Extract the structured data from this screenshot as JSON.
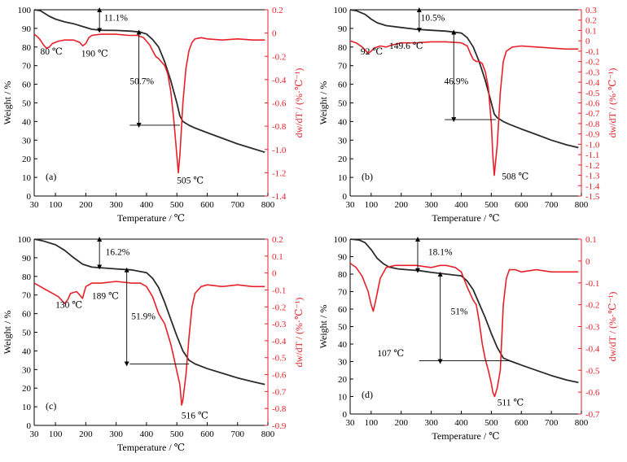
{
  "colors": {
    "weight": "#2b2b2b",
    "deriv": "#e8202a",
    "axis": "#000000",
    "annotation": "#000000"
  },
  "chart_data": [
    {
      "type": "line",
      "panel_label": "(a)",
      "xlabel": "Temperature / ℃",
      "ylabel_left": "Weight / %",
      "ylabel_right": "dw/dT / (%·℃⁻¹)",
      "xlim": [
        30,
        800
      ],
      "xticks": [
        "30",
        "100",
        "200",
        "300",
        "400",
        "500",
        "600",
        "700",
        "800"
      ],
      "ylim_left": [
        0,
        100
      ],
      "yticks_left": [
        "0",
        "10",
        "20",
        "30",
        "40",
        "50",
        "60",
        "70",
        "80",
        "90",
        "100"
      ],
      "ylim_right": [
        -1.4,
        0.2
      ],
      "yticks_right": [
        "0.2",
        "0",
        "-0.2",
        "-0.4",
        "-0.6",
        "-0.8",
        "-1.0",
        "-1.2",
        "-1.4"
      ],
      "grid": false,
      "series": [
        {
          "axis": "left",
          "x": [
            30,
            50,
            80,
            100,
            130,
            160,
            190,
            220,
            250,
            300,
            350,
            380,
            400,
            420,
            440,
            460,
            480,
            500,
            510,
            520,
            540,
            560,
            600,
            650,
            700,
            750,
            790
          ],
          "values": [
            100,
            99.5,
            96.5,
            95,
            93.5,
            92.5,
            91,
            89.5,
            89,
            88.9,
            88.5,
            88,
            87,
            84,
            80,
            72,
            62,
            50,
            43,
            40,
            38,
            36.5,
            34,
            31,
            28,
            25.5,
            23.5
          ]
        },
        {
          "axis": "right",
          "x": [
            30,
            40,
            50,
            60,
            70,
            80,
            90,
            110,
            130,
            160,
            180,
            190,
            200,
            210,
            220,
            250,
            300,
            340,
            370,
            390,
            400,
            410,
            420,
            430,
            440,
            450,
            460,
            470,
            480,
            490,
            500,
            505,
            510,
            520,
            530,
            540,
            550,
            560,
            580,
            600,
            650,
            700,
            750,
            790
          ],
          "values": [
            -0.01,
            -0.03,
            -0.06,
            -0.1,
            -0.13,
            -0.12,
            -0.09,
            -0.07,
            -0.06,
            -0.06,
            -0.08,
            -0.11,
            -0.09,
            -0.04,
            -0.02,
            -0.01,
            -0.01,
            -0.02,
            -0.02,
            -0.04,
            -0.07,
            -0.1,
            -0.15,
            -0.2,
            -0.22,
            -0.25,
            -0.28,
            -0.35,
            -0.5,
            -0.75,
            -1.05,
            -1.2,
            -1.05,
            -0.6,
            -0.3,
            -0.15,
            -0.08,
            -0.05,
            -0.04,
            -0.05,
            -0.06,
            -0.05,
            -0.06,
            -0.06
          ]
        }
      ],
      "annotations": [
        {
          "text": "11.1%",
          "x": 260,
          "y_left": 94
        },
        {
          "text": "50.7%",
          "x": 345,
          "y_left": 60
        },
        {
          "text": "80 ℃",
          "x": 50,
          "y_left": 76
        },
        {
          "text": "190 ℃",
          "x": 185,
          "y_left": 75
        },
        {
          "text": "505 ℃",
          "x": 500,
          "y_right": -1.29
        }
      ],
      "arrows": [
        {
          "x": 245,
          "from_left": 100,
          "to_left": 88.9
        },
        {
          "x": 375,
          "from_left": 88,
          "to_left": 38
        }
      ],
      "ref_lines": [
        {
          "y_left": 38,
          "x_from": 345,
          "x_to": 510
        }
      ]
    },
    {
      "type": "line",
      "panel_label": "(b)",
      "xlabel": "Temperature / ℃",
      "ylabel_left": "Weight / %",
      "ylabel_right": "dw/dT / (%·℃⁻¹)",
      "xlim": [
        30,
        800
      ],
      "xticks": [
        "30",
        "100",
        "200",
        "300",
        "400",
        "500",
        "600",
        "700",
        "800"
      ],
      "ylim_left": [
        0,
        100
      ],
      "yticks_left": [
        "0",
        "10",
        "20",
        "30",
        "40",
        "50",
        "60",
        "70",
        "80",
        "90",
        "100"
      ],
      "ylim_right": [
        -1.5,
        0.3
      ],
      "yticks_right": [
        "0.3",
        "0.2",
        "0.1",
        "0",
        "-0.1",
        "-0.2",
        "-0.3",
        "-0.4",
        "-0.5",
        "-0.6",
        "-0.7",
        "-0.8",
        "-0.9",
        "-1.0",
        "-1.1",
        "-1.2",
        "-1.3",
        "-1.4",
        "-1.5"
      ],
      "grid": false,
      "series": [
        {
          "axis": "left",
          "x": [
            30,
            50,
            80,
            100,
            120,
            150,
            200,
            250,
            300,
            350,
            400,
            420,
            440,
            460,
            480,
            500,
            510,
            520,
            540,
            560,
            600,
            650,
            700,
            750,
            790
          ],
          "values": [
            100,
            99.5,
            97.5,
            95,
            93,
            91.5,
            90.5,
            89.5,
            89,
            88.5,
            87.5,
            85,
            80,
            72,
            62,
            50,
            44,
            42,
            40,
            38.5,
            36,
            33,
            30,
            27.5,
            26
          ]
        },
        {
          "axis": "right",
          "x": [
            30,
            50,
            70,
            90,
            100,
            110,
            130,
            150,
            170,
            200,
            250,
            300,
            350,
            400,
            420,
            430,
            440,
            450,
            460,
            470,
            480,
            490,
            500,
            505,
            510,
            520,
            530,
            540,
            550,
            570,
            600,
            650,
            700,
            750,
            790
          ],
          "values": [
            0.0,
            -0.02,
            -0.06,
            -0.12,
            -0.1,
            -0.07,
            -0.05,
            -0.06,
            -0.04,
            -0.02,
            -0.02,
            -0.01,
            -0.01,
            -0.02,
            -0.05,
            -0.12,
            -0.18,
            -0.2,
            -0.2,
            -0.22,
            -0.3,
            -0.45,
            -0.8,
            -1.1,
            -1.3,
            -1.0,
            -0.5,
            -0.2,
            -0.1,
            -0.06,
            -0.05,
            -0.06,
            -0.07,
            -0.08,
            -0.08
          ]
        }
      ],
      "annotations": [
        {
          "text": "10.5%",
          "x": 265,
          "y_left": 94
        },
        {
          "text": "46.9%",
          "x": 343,
          "y_left": 60
        },
        {
          "text": "92 ℃",
          "x": 65,
          "y_left": 76
        },
        {
          "text": "149.6 ℃",
          "x": 160,
          "y_left": 79
        },
        {
          "text": "508 ℃",
          "x": 535,
          "y_right": -1.34
        }
      ],
      "arrows": [
        {
          "x": 260,
          "from_left": 100,
          "to_left": 89
        },
        {
          "x": 375,
          "from_left": 88,
          "to_left": 41
        }
      ],
      "ref_lines": [
        {
          "y_left": 41,
          "x_from": 345,
          "x_to": 515
        }
      ]
    },
    {
      "type": "line",
      "panel_label": "(c)",
      "xlabel": "Temperature / ℃",
      "ylabel_left": "Weight / %",
      "ylabel_right": "dw/dT / (%·℃⁻¹)",
      "xlim": [
        30,
        800
      ],
      "xticks": [
        "30",
        "100",
        "200",
        "300",
        "400",
        "500",
        "600",
        "700",
        "800"
      ],
      "ylim_left": [
        0,
        100
      ],
      "yticks_left": [
        "0",
        "10",
        "20",
        "30",
        "40",
        "50",
        "60",
        "70",
        "80",
        "90",
        "100"
      ],
      "ylim_right": [
        -0.9,
        0.2
      ],
      "yticks_right": [
        "0.2",
        "0.1",
        "0",
        "-0.1",
        "-0.2",
        "-0.3",
        "-0.4",
        "-0.5",
        "-0.6",
        "-0.7",
        "-0.8",
        "-0.9"
      ],
      "grid": false,
      "series": [
        {
          "axis": "left",
          "x": [
            30,
            60,
            100,
            130,
            160,
            190,
            220,
            260,
            300,
            350,
            400,
            420,
            440,
            460,
            480,
            500,
            520,
            540,
            560,
            600,
            650,
            700,
            750,
            790
          ],
          "values": [
            100,
            99,
            97,
            94,
            90,
            86.5,
            85,
            84.5,
            84,
            83.5,
            82,
            79,
            74,
            66,
            57,
            48,
            40,
            35,
            33,
            30.5,
            28,
            25.5,
            23.5,
            22
          ]
        },
        {
          "axis": "right",
          "x": [
            30,
            50,
            70,
            90,
            110,
            130,
            140,
            150,
            170,
            180,
            189,
            200,
            220,
            250,
            300,
            350,
            380,
            400,
            420,
            440,
            460,
            480,
            490,
            500,
            510,
            516,
            520,
            530,
            540,
            550,
            560,
            580,
            600,
            650,
            700,
            750,
            790
          ],
          "values": [
            -0.06,
            -0.08,
            -0.1,
            -0.12,
            -0.14,
            -0.18,
            -0.16,
            -0.12,
            -0.11,
            -0.13,
            -0.15,
            -0.08,
            -0.06,
            -0.06,
            -0.05,
            -0.06,
            -0.06,
            -0.08,
            -0.14,
            -0.24,
            -0.3,
            -0.42,
            -0.5,
            -0.58,
            -0.66,
            -0.78,
            -0.75,
            -0.6,
            -0.38,
            -0.2,
            -0.12,
            -0.08,
            -0.07,
            -0.08,
            -0.07,
            -0.08,
            -0.08
          ]
        }
      ],
      "annotations": [
        {
          "text": "16.2%",
          "x": 265,
          "y_left": 91.5
        },
        {
          "text": "51.9%",
          "x": 350,
          "y_left": 57
        },
        {
          "text": "130 ℃",
          "x": 100,
          "y_left": 63
        },
        {
          "text": "189 ℃",
          "x": 220,
          "y_left": 68
        },
        {
          "text": "516 ℃",
          "x": 515,
          "y_right": -0.86
        }
      ],
      "arrows": [
        {
          "x": 245,
          "from_left": 100,
          "to_left": 85
        },
        {
          "x": 335,
          "from_left": 83.5,
          "to_left": 33
        }
      ],
      "ref_lines": [
        {
          "y_left": 33,
          "x_from": 345,
          "x_to": 540
        }
      ]
    },
    {
      "type": "line",
      "panel_label": "(d)",
      "xlabel": "Temperature / ℃",
      "ylabel_left": "Weight / %",
      "ylabel_right": "dw/dT / (%·℃⁻¹)",
      "xlim": [
        30,
        800
      ],
      "xticks": [
        "30",
        "100",
        "200",
        "300",
        "400",
        "500",
        "600",
        "700",
        "800"
      ],
      "ylim_left": [
        0,
        100
      ],
      "yticks_left": [
        "0",
        "10",
        "20",
        "30",
        "40",
        "50",
        "60",
        "70",
        "80",
        "90",
        "100"
      ],
      "ylim_right": [
        -0.7,
        0.1
      ],
      "yticks_right": [
        "0.1",
        "0",
        "-0.1",
        "-0.2",
        "-0.3",
        "-0.4",
        "-0.5",
        "-0.6",
        "-0.7"
      ],
      "grid": false,
      "series": [
        {
          "axis": "left",
          "x": [
            30,
            60,
            80,
            100,
            120,
            140,
            160,
            190,
            220,
            260,
            300,
            350,
            400,
            420,
            440,
            460,
            480,
            500,
            520,
            540,
            560,
            600,
            650,
            700,
            750,
            790
          ],
          "values": [
            100,
            99.5,
            98,
            94,
            89,
            86,
            84,
            83,
            82.5,
            82,
            81,
            80,
            79,
            76,
            71,
            63,
            55,
            46,
            38,
            32,
            30.5,
            28,
            25,
            22,
            19.5,
            18
          ]
        },
        {
          "axis": "right",
          "x": [
            30,
            50,
            70,
            90,
            100,
            107,
            115,
            130,
            150,
            180,
            200,
            250,
            300,
            330,
            350,
            380,
            400,
            420,
            440,
            450,
            460,
            470,
            480,
            490,
            500,
            505,
            511,
            520,
            530,
            540,
            550,
            560,
            580,
            600,
            650,
            700,
            750,
            790
          ],
          "values": [
            -0.01,
            -0.03,
            -0.07,
            -0.14,
            -0.2,
            -0.23,
            -0.18,
            -0.08,
            -0.03,
            -0.02,
            -0.02,
            -0.02,
            -0.03,
            -0.02,
            -0.02,
            -0.03,
            -0.05,
            -0.12,
            -0.18,
            -0.2,
            -0.28,
            -0.38,
            -0.45,
            -0.5,
            -0.56,
            -0.6,
            -0.62,
            -0.58,
            -0.5,
            -0.2,
            -0.08,
            -0.04,
            -0.04,
            -0.05,
            -0.04,
            -0.05,
            -0.05,
            -0.05
          ]
        }
      ],
      "annotations": [
        {
          "text": "18.1%",
          "x": 290,
          "y_left": 91
        },
        {
          "text": "51%",
          "x": 365,
          "y_left": 57
        },
        {
          "text": "107 ℃",
          "x": 120,
          "y_left": 33
        },
        {
          "text": "511 ℃",
          "x": 520,
          "y_right": -0.66
        }
      ],
      "arrows": [
        {
          "x": 255,
          "from_left": 100,
          "to_left": 82
        },
        {
          "x": 330,
          "from_left": 80,
          "to_left": 30
        }
      ],
      "ref_lines": [
        {
          "y_left": 30.5,
          "x_from": 260,
          "x_to": 560
        }
      ]
    }
  ]
}
